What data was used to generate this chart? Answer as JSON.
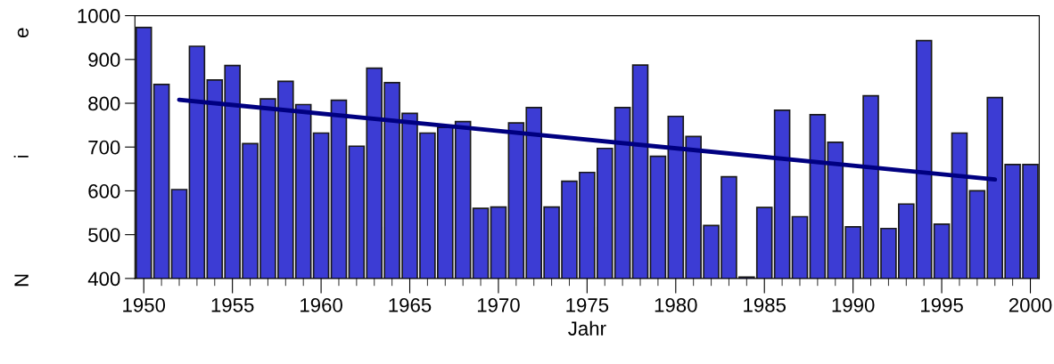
{
  "chart_data": {
    "type": "bar",
    "xlabel": "Jahr",
    "annotations": [
      "N",
      "i",
      "e"
    ],
    "x": [
      1950,
      1951,
      1952,
      1953,
      1954,
      1955,
      1956,
      1957,
      1958,
      1959,
      1960,
      1961,
      1962,
      1963,
      1964,
      1965,
      1966,
      1967,
      1968,
      1969,
      1970,
      1971,
      1972,
      1973,
      1974,
      1975,
      1976,
      1977,
      1978,
      1979,
      1980,
      1981,
      1982,
      1983,
      1984,
      1985,
      1986,
      1987,
      1988,
      1989,
      1990,
      1991,
      1992,
      1993,
      1994,
      1995,
      1996,
      1997,
      1998,
      1999,
      2000
    ],
    "series": [
      {
        "color": "#3c3cd4",
        "values": [
          973,
          843,
          603,
          930,
          853,
          886,
          708,
          810,
          850,
          797,
          732,
          807,
          702,
          880,
          847,
          777,
          732,
          745,
          758,
          560,
          563,
          755,
          790,
          563,
          622,
          642,
          697,
          790,
          887,
          679,
          770,
          724,
          521,
          632,
          403,
          562,
          784,
          541,
          774,
          711,
          518,
          817,
          514,
          570,
          943,
          524,
          732,
          600,
          813,
          660,
          660
        ]
      },
      {
        "type": "line",
        "color": "#000080",
        "x": [
          1952,
          1998
        ],
        "values": [
          808,
          626
        ]
      }
    ],
    "xlim": [
      1949.5,
      2000.5
    ],
    "ylim": [
      400,
      1000
    ],
    "xticks": [
      1950,
      1955,
      1960,
      1965,
      1970,
      1975,
      1980,
      1985,
      1990,
      1995,
      2000
    ],
    "yticks": [
      400,
      500,
      600,
      700,
      800,
      900,
      1000
    ],
    "grid": false,
    "legend": false,
    "marker": "none",
    "line_style": "solid"
  }
}
